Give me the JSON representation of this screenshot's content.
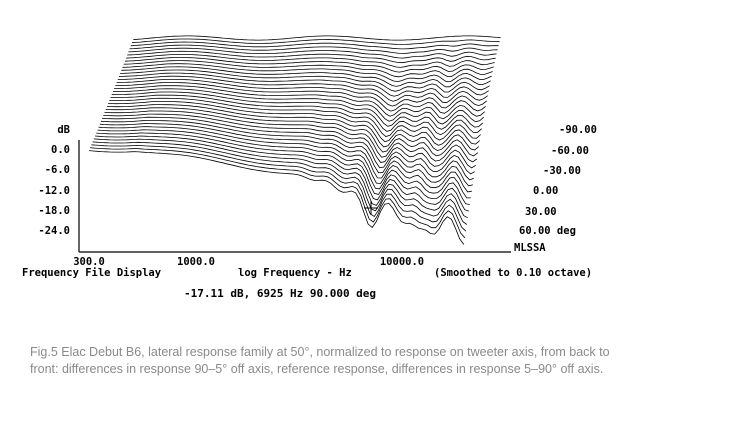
{
  "chart_data": {
    "type": "line",
    "subtype": "waterfall",
    "x_axis": {
      "scale": "log",
      "range_hz": [
        300,
        20000
      ],
      "tick_labels": [
        "300.0",
        "1000.0",
        "10000.0"
      ],
      "tick_values": [
        300,
        1000,
        10000
      ],
      "title": "log Frequency - Hz"
    },
    "y_axis": {
      "label": "dB",
      "tick_labels": [
        "0.0",
        "-6.0",
        "-12.0",
        "-18.0",
        "-24.0"
      ],
      "tick_values": [
        0,
        -6,
        -12,
        -18,
        -24
      ]
    },
    "z_axis": {
      "tick_labels": [
        "-90.00",
        "-60.00",
        "-30.00",
        "0.00",
        "30.00",
        "60.00 deg"
      ],
      "tick_values": [
        -90,
        -60,
        -30,
        0,
        30,
        60
      ]
    },
    "left_title": "Frequency File Display",
    "right_note": "(Smoothed to 0.10 octave)",
    "brand": "MLSSA",
    "cursor_readout": "-17.11 dB, 6925 Hz 90.000 deg",
    "cursor": {
      "frequency_hz": 6925,
      "level_db": -17.11,
      "angle_deg": 90
    },
    "series_count": 38
  },
  "caption": "Fig.5 Elac Debut B6, lateral response family at 50°, normalized to response on tweeter axis, from back to front: differences in response 90–5° off axis, reference response, differences in response 5–90° off axis."
}
